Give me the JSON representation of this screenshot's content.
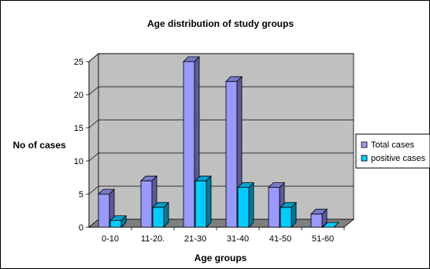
{
  "chart_data": {
    "type": "bar",
    "title": "Age distribution of study groups",
    "xlabel": "Age groups",
    "ylabel": "No of cases",
    "categories": [
      "0-10",
      "11-20.",
      "21-30",
      "31-40",
      "41-50",
      "51-60"
    ],
    "series": [
      {
        "name": "Total cases",
        "values": [
          5,
          7,
          25,
          22,
          6,
          2
        ],
        "color": "#9999ff"
      },
      {
        "name": "positive cases",
        "values": [
          1,
          3,
          7,
          6,
          3,
          0
        ],
        "color": "#00ccff"
      }
    ],
    "ylim": [
      0,
      25
    ],
    "yticks": [
      0,
      5,
      10,
      15,
      20,
      25
    ],
    "grid": true,
    "legend": "right",
    "wall_color": "#c0c0c0",
    "floor_color": "#808080"
  }
}
